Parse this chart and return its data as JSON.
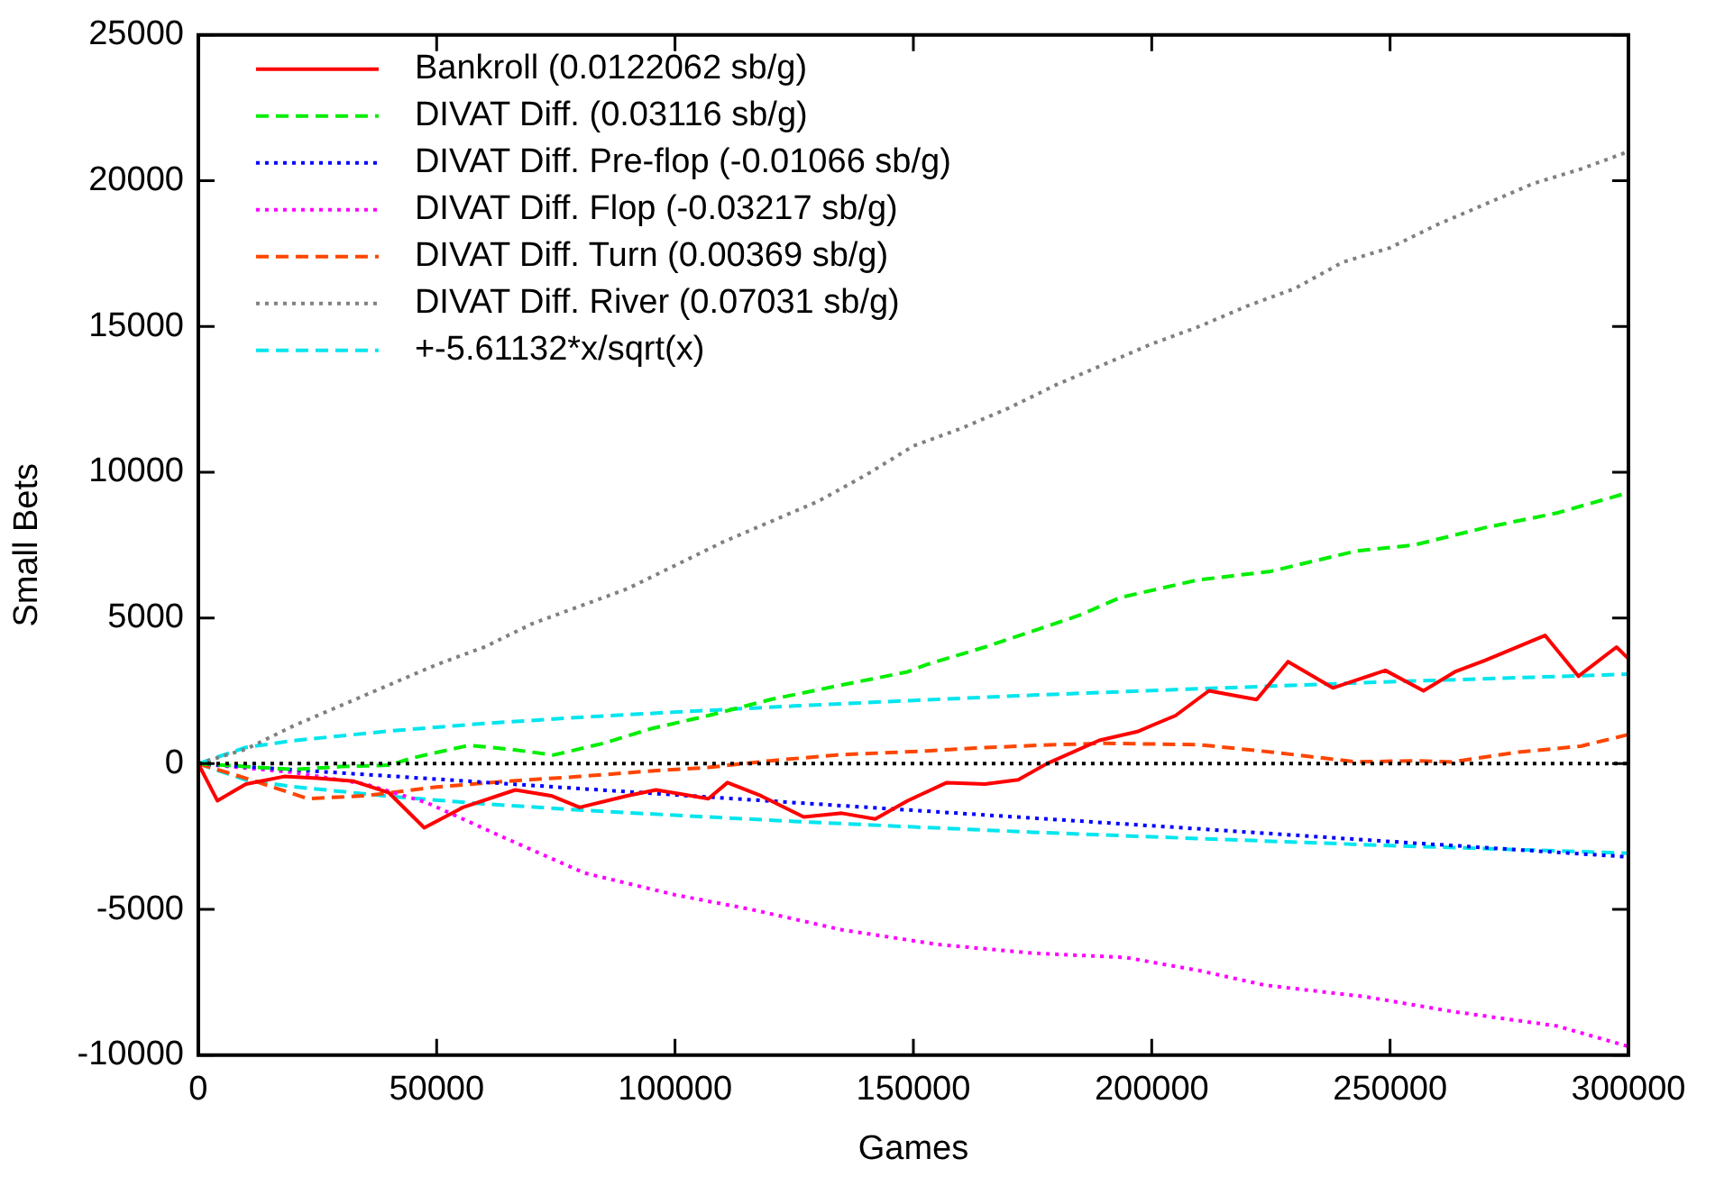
{
  "chart_data": {
    "type": "line",
    "xlabel": "Games",
    "ylabel": "Small Bets",
    "xlim": [
      0,
      300000
    ],
    "ylim": [
      -10000,
      25000
    ],
    "xticks": [
      0,
      50000,
      100000,
      150000,
      200000,
      250000,
      300000
    ],
    "yticks": [
      -10000,
      -5000,
      0,
      5000,
      10000,
      15000,
      20000,
      25000
    ],
    "grid": false,
    "legend": "top left",
    "marker": "none",
    "ref_lines": [
      {
        "axis": "y",
        "value": 0,
        "color": "#000000",
        "line_style": "dotted"
      }
    ],
    "series": [
      {
        "name": "Bankroll (0.0122062 sb/g)",
        "color": "#ff0000",
        "line_style": "solid",
        "x": [
          0,
          4000,
          10000,
          18000,
          25000,
          32600,
          40000,
          47400,
          55500,
          66500,
          74000,
          80000,
          90000,
          96000,
          107000,
          111000,
          118000,
          127000,
          135000,
          142000,
          148800,
          157000,
          165000,
          172000,
          178000,
          189000,
          197000,
          205000,
          212000,
          222000,
          228600,
          238000,
          249000,
          257000,
          263600,
          270000,
          282500,
          289500,
          297500,
          300000
        ],
        "values": [
          0,
          -1270,
          -700,
          -440,
          -500,
          -600,
          -1000,
          -2200,
          -1500,
          -900,
          -1100,
          -1500,
          -1100,
          -900,
          -1200,
          -650,
          -1100,
          -1830,
          -1700,
          -1900,
          -1270,
          -650,
          -700,
          -550,
          0,
          800,
          1100,
          1650,
          2500,
          2200,
          3500,
          2600,
          3200,
          2500,
          3150,
          3550,
          4400,
          3000,
          4000,
          3600
        ]
      },
      {
        "name": "DIVAT Diff. (0.03116 sb/g)",
        "color": "#00ee00",
        "line_style": "dashed",
        "x": [
          0,
          10000,
          20000,
          30000,
          40000,
          45000,
          56800,
          65000,
          74600,
          85000,
          95000,
          107000,
          120000,
          135000,
          148800,
          152800,
          165000,
          176000,
          185000,
          193400,
          209600,
          225000,
          243000,
          255000,
          270000,
          285000,
          300000
        ],
        "values": [
          0,
          -100,
          -200,
          -100,
          -50,
          200,
          630,
          500,
          300,
          700,
          1200,
          1650,
          2200,
          2700,
          3150,
          3400,
          4000,
          4600,
          5100,
          5700,
          6300,
          6600,
          7300,
          7500,
          8100,
          8600,
          9300
        ]
      },
      {
        "name": "DIVAT Diff. Pre-flop (-0.01066 sb/g)",
        "color": "#0000ff",
        "line_style": "dotted",
        "x": [
          0,
          50000,
          100000,
          150000,
          200000,
          250000,
          300000
        ],
        "values": [
          0,
          -530,
          -1070,
          -1600,
          -2130,
          -2670,
          -3200
        ]
      },
      {
        "name": "DIVAT Diff. Flop (-0.03217 sb/g)",
        "color": "#ff00ff",
        "line_style": "dotted",
        "x": [
          0,
          20000,
          35000,
          47800,
          65000,
          81000,
          100000,
          116000,
          135000,
          155000,
          175000,
          194600,
          210000,
          223800,
          245000,
          263000,
          285000,
          300000
        ],
        "values": [
          0,
          -300,
          -700,
          -1330,
          -2600,
          -3750,
          -4500,
          -5000,
          -5700,
          -6200,
          -6500,
          -6650,
          -7100,
          -7600,
          -8000,
          -8500,
          -9000,
          -9700
        ]
      },
      {
        "name": "DIVAT Diff. Turn (0.00369 sb/g)",
        "color": "#ff4500",
        "line_style": "dashed",
        "x": [
          0,
          10000,
          23000,
          35000,
          50000,
          65000,
          80000,
          95000,
          107000,
          120000,
          134000,
          153000,
          165000,
          176000,
          190000,
          210000,
          225000,
          243000,
          255000,
          263000,
          277000,
          290000,
          300000
        ],
        "values": [
          0,
          -500,
          -1200,
          -1100,
          -800,
          -600,
          -440,
          -250,
          -130,
          100,
          300,
          440,
          550,
          630,
          700,
          650,
          400,
          60,
          100,
          60,
          400,
          600,
          1000
        ]
      },
      {
        "name": "DIVAT Diff. River (0.07031 sb/g)",
        "color": "#808080",
        "line_style": "dotted",
        "x": [
          0,
          10000,
          20000,
          30000,
          40000,
          50000,
          60000,
          70000,
          80000,
          90000,
          100000,
          110000,
          120000,
          130000,
          140000,
          150000,
          160000,
          170000,
          180000,
          190000,
          200000,
          210000,
          220000,
          230000,
          240000,
          250000,
          260000,
          270000,
          280000,
          290000,
          300000
        ],
        "values": [
          0,
          500,
          1300,
          2000,
          2700,
          3400,
          4000,
          4800,
          5400,
          6000,
          6800,
          7600,
          8300,
          9000,
          9900,
          10900,
          11500,
          12200,
          13000,
          13700,
          14400,
          15000,
          15700,
          16300,
          17200,
          17700,
          18500,
          19200,
          19900,
          20400,
          21000
        ]
      },
      {
        "name": "+-5.61132*x/sqrt(x)",
        "color": "#00e5ee",
        "line_style": "dashed",
        "x": [
          0,
          10000,
          20000,
          40000,
          60000,
          80000,
          100000,
          125000,
          150000,
          175000,
          200000,
          225000,
          250000,
          275000,
          300000
        ],
        "values": [
          0,
          560,
          790,
          1120,
          1380,
          1590,
          1770,
          1980,
          2170,
          2350,
          2510,
          2660,
          2810,
          2940,
          3070
        ]
      },
      {
        "color": "#00e5ee",
        "line_style": "dashed",
        "x": [
          0,
          10000,
          20000,
          40000,
          60000,
          80000,
          100000,
          125000,
          150000,
          175000,
          200000,
          225000,
          250000,
          275000,
          300000
        ],
        "values": [
          0,
          -560,
          -790,
          -1120,
          -1380,
          -1590,
          -1770,
          -1980,
          -2170,
          -2350,
          -2510,
          -2660,
          -2810,
          -2940,
          -3070
        ]
      }
    ]
  }
}
